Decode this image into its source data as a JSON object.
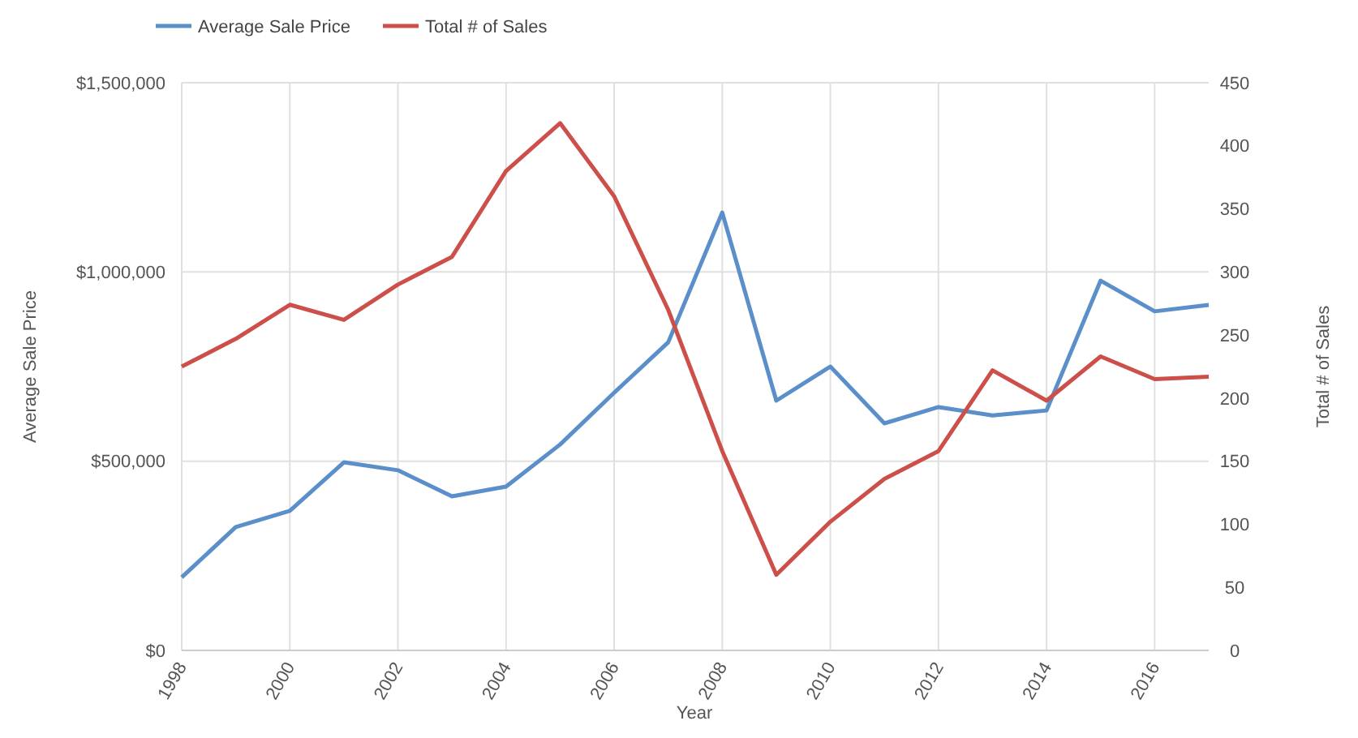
{
  "chart_data": {
    "type": "line",
    "xlabel": "Year",
    "ylabel": "Average Sale Price",
    "y2label": "Total # of Sales",
    "x": [
      1998,
      1999,
      2000,
      2001,
      2002,
      2003,
      2004,
      2005,
      2006,
      2007,
      2008,
      2009,
      2010,
      2011,
      2012,
      2013,
      2014,
      2015,
      2016,
      2017
    ],
    "xlim": [
      1998,
      2017
    ],
    "xticks": [
      1998,
      2000,
      2002,
      2004,
      2006,
      2008,
      2010,
      2012,
      2014,
      2016
    ],
    "ylim": [
      0,
      1500000
    ],
    "yticks": [
      {
        "value": 0,
        "label": "$0"
      },
      {
        "value": 500000,
        "label": "$500,000"
      },
      {
        "value": 1000000,
        "label": "$1,000,000"
      },
      {
        "value": 1500000,
        "label": "$1,500,000"
      }
    ],
    "y2lim": [
      0,
      450
    ],
    "y2ticks": [
      0,
      50,
      100,
      150,
      200,
      250,
      300,
      350,
      400,
      450
    ],
    "grid": true,
    "legend": "top left",
    "marker": "none",
    "line_style": "solid",
    "series": [
      {
        "name": "Average Sale Price",
        "color": "#5b8fc9",
        "values": [
          193000,
          326000,
          369000,
          497000,
          476000,
          407000,
          433000,
          544000,
          681000,
          814000,
          1157000,
          660000,
          750000,
          600000,
          643000,
          621000,
          634000,
          977000,
          896000,
          913000
        ]
      },
      {
        "name": "Total # of Sales",
        "color": "#cc4f4a",
        "axis": "y2",
        "values": [
          225,
          247,
          274,
          262,
          290,
          312,
          380,
          418,
          360,
          270,
          158,
          60,
          102,
          136,
          158,
          222,
          198,
          233,
          215,
          217
        ]
      }
    ]
  }
}
